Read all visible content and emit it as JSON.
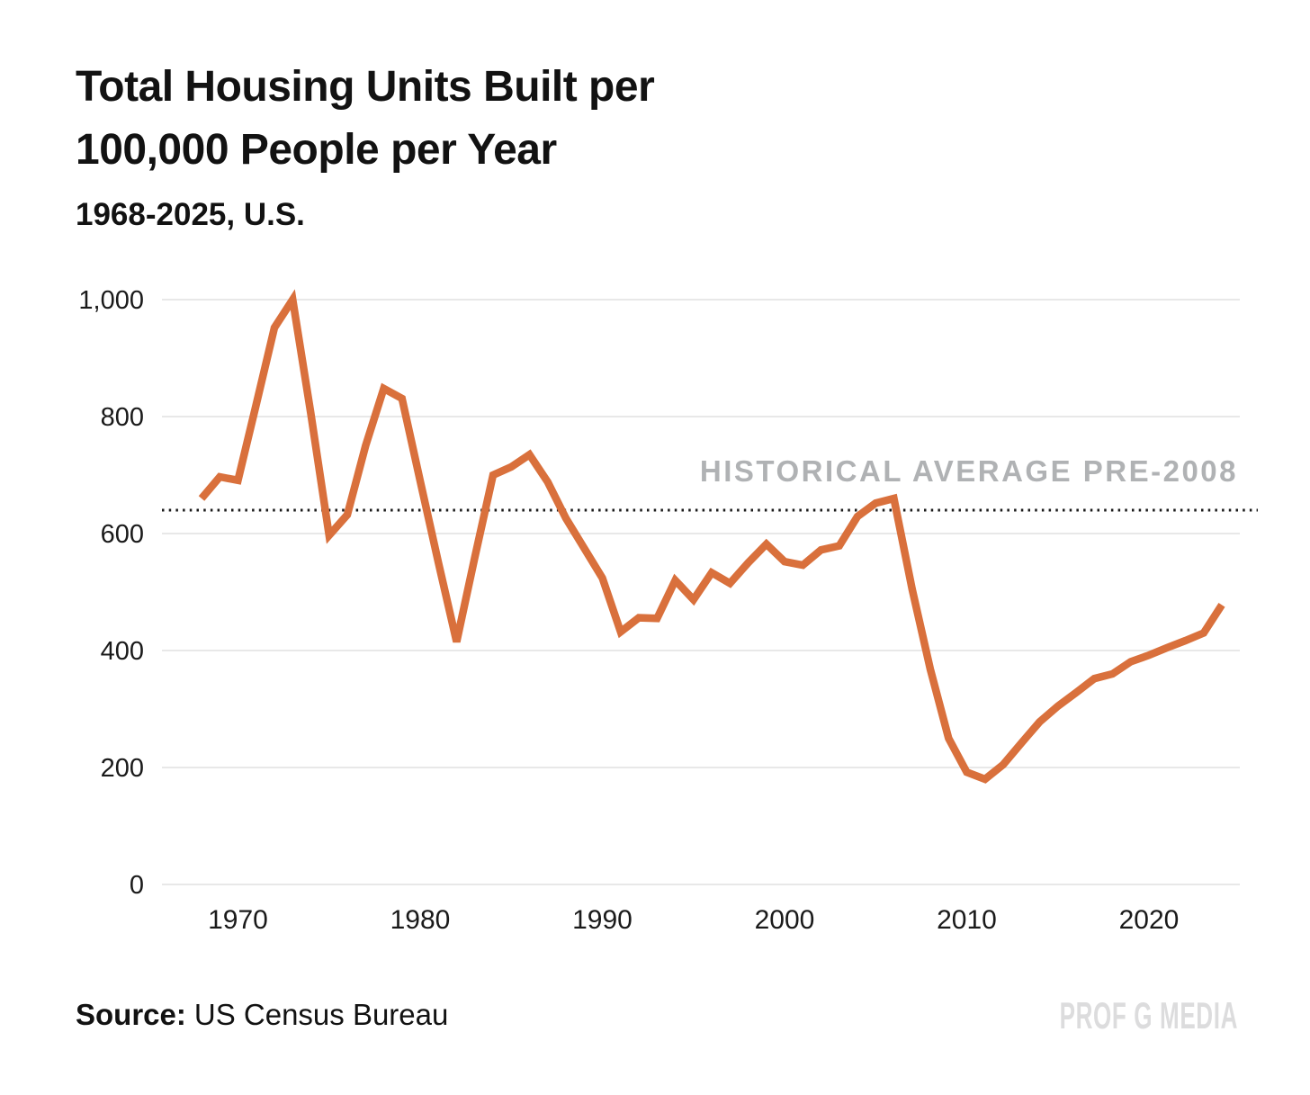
{
  "title": {
    "line1": "Total Housing Units Built per",
    "line2": "100,000 People per Year"
  },
  "subtitle": "1968-2025, U.S.",
  "annotation": "HISTORICAL AVERAGE PRE-2008",
  "source": {
    "label": "Source:",
    "text": "US Census Bureau"
  },
  "watermark": "PROF G MEDIA",
  "colors": {
    "line": "#d9703c",
    "grid": "#e8e8e8",
    "average_line": "#1a1a1a",
    "annotation": "#b0b2b4",
    "text": "#1a1a1a",
    "watermark": "#dcdcdd"
  },
  "chart_data": {
    "type": "line",
    "title": "Total Housing Units Built per 100,000 People per Year",
    "subtitle": "1968-2025, U.S.",
    "xlabel": "",
    "ylabel": "",
    "series_name": "Total housing units built per 100,000 people per year",
    "x": [
      1968,
      1969,
      1970,
      1971,
      1972,
      1973,
      1974,
      1975,
      1976,
      1977,
      1978,
      1979,
      1980,
      1981,
      1982,
      1983,
      1984,
      1985,
      1986,
      1987,
      1988,
      1989,
      1990,
      1991,
      1992,
      1993,
      1994,
      1995,
      1996,
      1997,
      1998,
      1999,
      2000,
      2001,
      2002,
      2003,
      2004,
      2005,
      2006,
      2007,
      2008,
      2009,
      2010,
      2011,
      2012,
      2013,
      2014,
      2015,
      2016,
      2017,
      2018,
      2019,
      2020,
      2021,
      2022,
      2023,
      2024
    ],
    "values": [
      660,
      697,
      691,
      821,
      952,
      1000,
      805,
      597,
      632,
      750,
      848,
      831,
      690,
      550,
      415,
      560,
      700,
      714,
      735,
      688,
      626,
      575,
      524,
      432,
      456,
      455,
      520,
      487,
      533,
      515,
      550,
      582,
      552,
      546,
      572,
      579,
      629,
      652,
      660,
      505,
      368,
      250,
      192,
      180,
      205,
      242,
      278,
      305,
      328,
      352,
      360,
      381,
      392,
      405,
      417,
      430,
      478
    ],
    "ylim": [
      0,
      1000
    ],
    "y_ticks": [
      0,
      200,
      400,
      600,
      800,
      1000
    ],
    "y_tick_labels": [
      "0",
      "200",
      "400",
      "600",
      "800",
      "1,000"
    ],
    "x_ticks": [
      1970,
      1980,
      1990,
      2000,
      2010,
      2020
    ],
    "x_tick_labels": [
      "1970",
      "1980",
      "1990",
      "2000",
      "2010",
      "2020"
    ],
    "grid": "horizontal",
    "legend": "none",
    "average_line": {
      "value": 640,
      "style": "dotted",
      "label": "HISTORICAL AVERAGE PRE-2008"
    }
  }
}
